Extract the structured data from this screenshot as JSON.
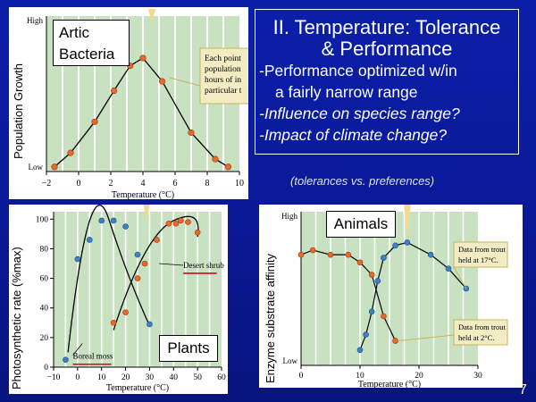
{
  "slide": {
    "title_line1": "II.  Temperature: Tolerance",
    "title_line2": "& Performance",
    "bullets": [
      "-Performance optimized w/in",
      "a fairly narrow range",
      "-Influence on species range?",
      "-Impact of climate change?"
    ],
    "note": "(tolerances vs. preferences)",
    "page_number": "7"
  },
  "chart_data": [
    {
      "type": "line",
      "label": "Artic Bacteria",
      "xlabel": "Temperature (°C)",
      "ylabel": "Population Growth",
      "y_tick_labels": [
        "Low",
        "High"
      ],
      "xlim": [
        -2,
        10
      ],
      "x_ticks": [
        -2,
        0,
        2,
        4,
        6,
        8,
        10
      ],
      "callout": [
        "Each point",
        "population",
        "hours of in",
        "particular t"
      ],
      "series": [
        {
          "points": [
            [
              -1.5,
              0.03
            ],
            [
              -0.5,
              0.12
            ],
            [
              1,
              0.32
            ],
            [
              2.2,
              0.52
            ],
            [
              3.2,
              0.68
            ],
            [
              4,
              0.73
            ],
            [
              5.2,
              0.58
            ],
            [
              7,
              0.25
            ],
            [
              8.5,
              0.08
            ],
            [
              9.3,
              0.03
            ]
          ]
        }
      ],
      "colors": {
        "points": "#e8692a",
        "line": "#000000",
        "grid": "#9ecf9a"
      }
    },
    {
      "type": "line",
      "label": "Plants",
      "xlabel": "Temperature (°C)",
      "ylabel": "Photosynthetic rate (%max)",
      "xlim": [
        -10,
        60
      ],
      "ylim": [
        0,
        105
      ],
      "x_ticks": [
        -10,
        0,
        10,
        20,
        30,
        40,
        50,
        60
      ],
      "y_ticks": [
        0,
        20,
        40,
        60,
        80,
        100
      ],
      "series": [
        {
          "name": "Boreal moss",
          "color": "#3f82c4",
          "points": [
            [
              -5,
              5
            ],
            [
              0,
              73
            ],
            [
              5,
              86
            ],
            [
              10,
              99
            ],
            [
              15,
              99
            ],
            [
              20,
              95
            ],
            [
              25,
              76
            ],
            [
              30,
              29
            ]
          ]
        },
        {
          "name": "Desert shrub",
          "color": "#e8692a",
          "points": [
            [
              15,
              30
            ],
            [
              20,
              37
            ],
            [
              25,
              60
            ],
            [
              28,
              70
            ],
            [
              33,
              86
            ],
            [
              38,
              97
            ],
            [
              41,
              97
            ],
            [
              43,
              99
            ],
            [
              46,
              98
            ],
            [
              50,
              91
            ]
          ]
        }
      ]
    },
    {
      "type": "line",
      "label": "Animals",
      "xlabel": "Temperature (°C)",
      "ylabel": "Enzyme substrate affinity",
      "y_tick_labels": [
        "Low",
        "High"
      ],
      "xlim": [
        0,
        30
      ],
      "x_ticks": [
        0,
        10,
        20,
        30
      ],
      "series": [
        {
          "name": "Data from trout held at 17°C.",
          "color": "#3f82c4",
          "points": [
            [
              10,
              0.1
            ],
            [
              11,
              0.2
            ],
            [
              12,
              0.35
            ],
            [
              13,
              0.55
            ],
            [
              14,
              0.7
            ],
            [
              16,
              0.78
            ],
            [
              18,
              0.8
            ],
            [
              22,
              0.72
            ],
            [
              25,
              0.63
            ],
            [
              28,
              0.5
            ]
          ]
        },
        {
          "name": "Data from trout held at 2°C.",
          "color": "#e8692a",
          "points": [
            [
              0,
              0.72
            ],
            [
              2,
              0.75
            ],
            [
              5,
              0.72
            ],
            [
              8,
              0.72
            ],
            [
              10,
              0.67
            ],
            [
              12,
              0.59
            ],
            [
              14,
              0.32
            ],
            [
              16,
              0.16
            ]
          ]
        }
      ]
    }
  ]
}
